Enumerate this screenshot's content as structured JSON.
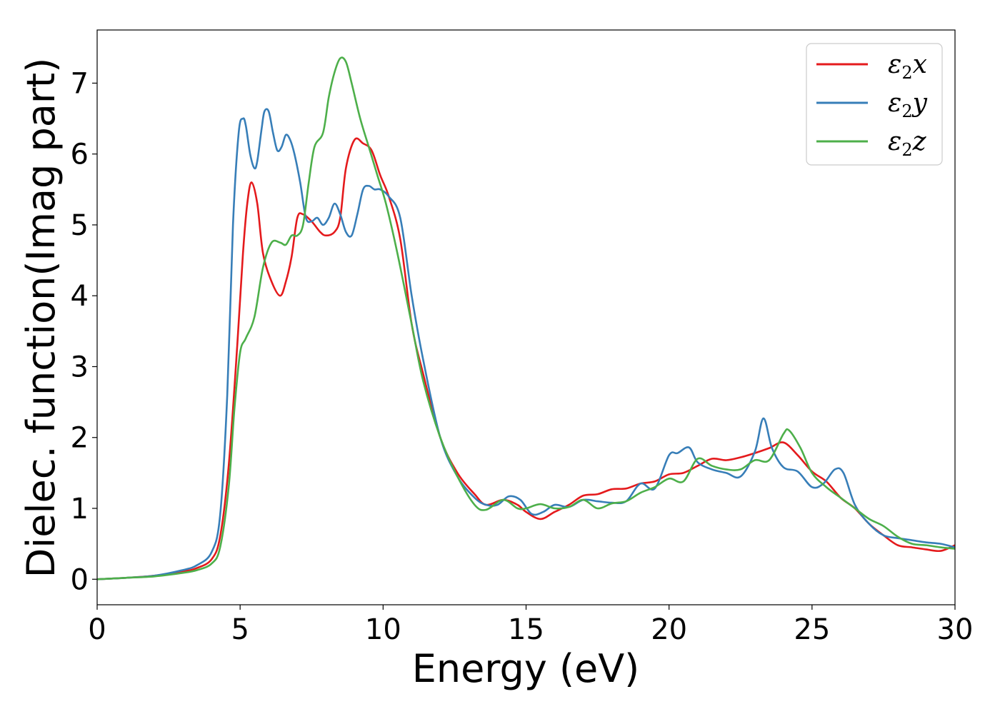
{
  "chart_data": {
    "type": "line",
    "xlabel": "Energy (eV)",
    "ylabel": "Dielec. function(Imag part)",
    "xlim": [
      0,
      30
    ],
    "ylim": [
      -0.36,
      7.75
    ],
    "xticks": [
      0,
      5,
      10,
      15,
      20,
      25,
      30
    ],
    "yticks": [
      0,
      1,
      2,
      3,
      4,
      5,
      6,
      7
    ],
    "grid": false,
    "legend_position": "top-right",
    "series": [
      {
        "name": "ε₂x",
        "legend_main": "ε",
        "legend_sub": "2",
        "legend_tail": "x",
        "color": "#e41a1c",
        "x": [
          0,
          1,
          2,
          3,
          3.5,
          4,
          4.3,
          4.6,
          4.9,
          5.1,
          5.25,
          5.4,
          5.6,
          5.8,
          6.1,
          6.4,
          6.6,
          6.8,
          7.0,
          7.2,
          7.5,
          7.8,
          8.0,
          8.3,
          8.5,
          8.7,
          9.0,
          9.3,
          9.6,
          9.9,
          10.2,
          10.6,
          11.0,
          11.4,
          12.0,
          12.6,
          13.2,
          13.6,
          14.2,
          14.7,
          15.0,
          15.5,
          16.0,
          16.5,
          17.0,
          17.5,
          18.0,
          18.5,
          19.0,
          19.5,
          20.0,
          20.5,
          21.0,
          21.5,
          22.0,
          22.5,
          23.0,
          23.5,
          24.0,
          24.5,
          25.0,
          25.5,
          26.0,
          26.5,
          27.0,
          27.5,
          28.0,
          28.5,
          29.0,
          29.5,
          30.0
        ],
        "y": [
          0.0,
          0.02,
          0.05,
          0.11,
          0.16,
          0.28,
          0.6,
          1.6,
          3.3,
          4.6,
          5.3,
          5.6,
          5.3,
          4.6,
          4.2,
          4.0,
          4.2,
          4.55,
          5.1,
          5.15,
          5.05,
          4.9,
          4.85,
          4.9,
          5.1,
          5.8,
          6.2,
          6.15,
          6.05,
          5.7,
          5.4,
          4.8,
          3.6,
          2.9,
          2.0,
          1.5,
          1.2,
          1.05,
          1.12,
          1.05,
          0.95,
          0.85,
          0.95,
          1.05,
          1.18,
          1.2,
          1.27,
          1.28,
          1.35,
          1.38,
          1.48,
          1.5,
          1.6,
          1.7,
          1.68,
          1.72,
          1.78,
          1.85,
          1.93,
          1.75,
          1.52,
          1.38,
          1.15,
          1.0,
          0.78,
          0.62,
          0.48,
          0.45,
          0.42,
          0.4,
          0.48
        ]
      },
      {
        "name": "ε₂y",
        "legend_main": "ε",
        "legend_sub": "2",
        "legend_tail": "y",
        "color": "#377eb8",
        "x": [
          0,
          1,
          2,
          3,
          3.5,
          4,
          4.3,
          4.55,
          4.75,
          4.95,
          5.1,
          5.2,
          5.35,
          5.5,
          5.6,
          5.75,
          5.85,
          6.0,
          6.15,
          6.3,
          6.45,
          6.6,
          6.75,
          6.9,
          7.1,
          7.3,
          7.5,
          7.7,
          7.9,
          8.1,
          8.3,
          8.5,
          8.7,
          8.9,
          9.1,
          9.3,
          9.5,
          9.7,
          9.9,
          10.2,
          10.6,
          11.0,
          11.4,
          12.0,
          12.6,
          13.2,
          13.6,
          14.0,
          14.4,
          14.8,
          15.2,
          15.6,
          16.0,
          16.5,
          17.0,
          17.5,
          18.0,
          18.5,
          19.0,
          19.5,
          20.0,
          20.3,
          20.7,
          21.0,
          21.5,
          22.0,
          22.5,
          23.0,
          23.3,
          23.6,
          24.0,
          24.5,
          25.0,
          25.4,
          25.8,
          26.1,
          26.5,
          27.0,
          27.5,
          28.0,
          28.5,
          29.0,
          29.5,
          30.0
        ],
        "y": [
          0.0,
          0.02,
          0.05,
          0.13,
          0.2,
          0.38,
          0.9,
          2.6,
          5.0,
          6.3,
          6.5,
          6.4,
          6.0,
          5.8,
          5.9,
          6.35,
          6.6,
          6.6,
          6.3,
          6.05,
          6.1,
          6.27,
          6.2,
          6.0,
          5.6,
          5.1,
          5.05,
          5.1,
          5.0,
          5.1,
          5.3,
          5.15,
          4.9,
          4.85,
          5.15,
          5.5,
          5.55,
          5.5,
          5.5,
          5.4,
          5.1,
          4.0,
          3.1,
          2.0,
          1.45,
          1.15,
          1.05,
          1.05,
          1.17,
          1.12,
          0.92,
          0.95,
          1.05,
          1.02,
          1.12,
          1.1,
          1.08,
          1.1,
          1.35,
          1.28,
          1.75,
          1.78,
          1.86,
          1.65,
          1.55,
          1.5,
          1.45,
          1.8,
          2.27,
          1.85,
          1.58,
          1.52,
          1.3,
          1.35,
          1.55,
          1.5,
          1.05,
          0.78,
          0.62,
          0.58,
          0.55,
          0.52,
          0.5,
          0.45
        ]
      },
      {
        "name": "ε₂z",
        "legend_main": "ε",
        "legend_sub": "2",
        "legend_tail": "z",
        "color": "#4daf4a",
        "x": [
          0,
          1,
          2,
          3,
          3.5,
          4,
          4.3,
          4.6,
          4.8,
          5.0,
          5.2,
          5.5,
          5.8,
          6.1,
          6.4,
          6.6,
          6.8,
          7.0,
          7.2,
          7.4,
          7.6,
          7.9,
          8.1,
          8.3,
          8.5,
          8.7,
          8.9,
          9.2,
          9.5,
          9.8,
          10.1,
          10.5,
          11.0,
          11.4,
          12.0,
          12.6,
          13.2,
          13.6,
          14.2,
          14.7,
          15.0,
          15.5,
          16.0,
          16.5,
          17.0,
          17.5,
          18.0,
          18.5,
          19.0,
          19.5,
          20.0,
          20.5,
          21.0,
          21.5,
          22.0,
          22.5,
          23.0,
          23.5,
          24.0,
          24.2,
          24.6,
          25.0,
          25.5,
          26.0,
          26.5,
          27.0,
          27.5,
          28.0,
          28.5,
          29.0,
          29.5,
          30.0
        ],
        "y": [
          0.0,
          0.02,
          0.04,
          0.09,
          0.13,
          0.22,
          0.45,
          1.3,
          2.4,
          3.2,
          3.4,
          3.7,
          4.4,
          4.75,
          4.75,
          4.72,
          4.85,
          4.85,
          5.0,
          5.6,
          6.1,
          6.3,
          6.8,
          7.15,
          7.35,
          7.3,
          7.0,
          6.5,
          6.1,
          5.7,
          5.3,
          4.6,
          3.6,
          2.8,
          2.0,
          1.45,
          1.05,
          0.98,
          1.12,
          1.0,
          1.0,
          1.06,
          1.0,
          1.02,
          1.12,
          1.0,
          1.07,
          1.1,
          1.22,
          1.3,
          1.42,
          1.38,
          1.7,
          1.6,
          1.55,
          1.55,
          1.68,
          1.68,
          2.05,
          2.1,
          1.85,
          1.5,
          1.3,
          1.15,
          1.0,
          0.85,
          0.75,
          0.6,
          0.5,
          0.48,
          0.45,
          0.43
        ]
      }
    ]
  }
}
